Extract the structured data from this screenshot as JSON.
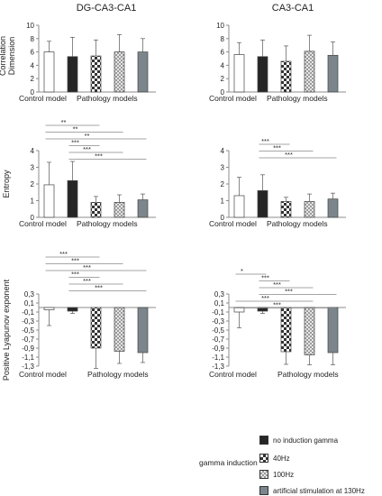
{
  "colors": {
    "control": "#ffffff",
    "no_induction": "#262626",
    "hz40": "#3a3a3a",
    "hz130": "#bdbdbd",
    "artificial": "#7b868c",
    "axis": "#8c8c8c",
    "text": "#222222"
  },
  "titles": {
    "left": "DG-CA3-CA1",
    "right": "CA3-CA1"
  },
  "legend": {
    "title": "gamma induction",
    "items": [
      {
        "label": "no induction gamma",
        "pattern": "solid-dark"
      },
      {
        "label": "40Hz",
        "pattern": "checker"
      },
      {
        "label": "100Hz",
        "pattern": "fine-checker"
      },
      {
        "label": "artificial stimulation at 130Hz",
        "pattern": "solid-gray"
      }
    ]
  },
  "chart_data": [
    {
      "type": "bar",
      "panel": "DG-CA3-CA1 correlation dimension",
      "ylabel": "Correlation Dimension",
      "ylim": [
        0,
        10
      ],
      "yticks": [
        "0",
        "2",
        "4",
        "6",
        "8",
        "10"
      ],
      "xlabels": [
        "Control model",
        "Pathology models"
      ],
      "values": [
        6.0,
        5.3,
        5.4,
        6.0,
        6.0
      ],
      "errors": [
        1.6,
        2.9,
        2.4,
        2.6,
        2.0
      ],
      "significance": []
    },
    {
      "type": "bar",
      "panel": "CA3-CA1 correlation dimension",
      "ylabel": "",
      "ylim": [
        0,
        10
      ],
      "yticks": [
        "0",
        "2",
        "4",
        "6",
        "8",
        "10"
      ],
      "xlabels": [
        "Control model",
        "Pathology models"
      ],
      "values": [
        5.6,
        5.3,
        4.6,
        6.1,
        5.5
      ],
      "errors": [
        1.8,
        2.5,
        2.3,
        2.4,
        2.0
      ],
      "significance": []
    },
    {
      "type": "bar",
      "panel": "DG-CA3-CA1 entropy",
      "ylabel": "Entropy",
      "ylim": [
        0,
        4
      ],
      "yticks": [
        "0",
        "1",
        "2",
        "3",
        "4"
      ],
      "xlabels": [
        "Control model",
        "Pathology models"
      ],
      "values": [
        1.95,
        2.2,
        0.9,
        0.9,
        1.05
      ],
      "errors": [
        1.35,
        1.15,
        0.35,
        0.45,
        0.35
      ],
      "significance": [
        {
          "from": 0,
          "to": 2,
          "label": "**"
        },
        {
          "from": 0,
          "to": 3,
          "label": "**"
        },
        {
          "from": 0,
          "to": 4,
          "label": "**"
        },
        {
          "from": 1,
          "to": 2,
          "label": "***"
        },
        {
          "from": 1,
          "to": 3,
          "label": "***"
        },
        {
          "from": 1,
          "to": 4,
          "label": "***"
        }
      ]
    },
    {
      "type": "bar",
      "panel": "CA3-CA1 entropy",
      "ylabel": "",
      "ylim": [
        0,
        4
      ],
      "yticks": [
        "0",
        "1",
        "2",
        "3",
        "4"
      ],
      "xlabels": [
        "Control model",
        "Pathology models"
      ],
      "values": [
        1.3,
        1.6,
        0.95,
        0.95,
        1.1
      ],
      "errors": [
        1.1,
        0.95,
        0.25,
        0.45,
        0.35
      ],
      "significance": [
        {
          "from": 1,
          "to": 2,
          "label": "***"
        },
        {
          "from": 1,
          "to": 3,
          "label": "***"
        },
        {
          "from": 1,
          "to": 4,
          "label": "***"
        }
      ]
    },
    {
      "type": "bar",
      "panel": "DG-CA3-CA1 positive Lyapunov exponent",
      "ylabel": "Positive Lyapunov exponent",
      "ylim": [
        -1.3,
        0.3
      ],
      "yticks": [
        "0,3",
        "0,1",
        "-0,1",
        "-0,3",
        "-0,5",
        "-0,7",
        "-0,9",
        "-1,1",
        "-1,3"
      ],
      "xlabels": [
        "Control model",
        "Pathology models"
      ],
      "values": [
        -0.05,
        -0.08,
        -0.9,
        -0.97,
        -1.0
      ],
      "errors": [
        0.35,
        0.05,
        0.45,
        0.27,
        0.22
      ],
      "significance": [
        {
          "from": 0,
          "to": 2,
          "label": "***"
        },
        {
          "from": 0,
          "to": 3,
          "label": "***"
        },
        {
          "from": 0,
          "to": 4,
          "label": "***"
        },
        {
          "from": 1,
          "to": 2,
          "label": "***"
        },
        {
          "from": 1,
          "to": 3,
          "label": "***"
        },
        {
          "from": 1,
          "to": 4,
          "label": "***"
        }
      ]
    },
    {
      "type": "bar",
      "panel": "CA3-CA1 positive Lyapunov exponent",
      "ylabel": "",
      "ylim": [
        -1.3,
        0.3
      ],
      "yticks": [
        "0,3",
        "0,1",
        "-0,1",
        "-0,3",
        "-0,5",
        "-0,7",
        "-0,9",
        "-1,1",
        "-1,3"
      ],
      "xlabels": [
        "Control model",
        "Pathology models"
      ],
      "values": [
        -0.1,
        -0.08,
        -0.98,
        -1.05,
        -1.0
      ],
      "errors": [
        0.35,
        0.05,
        0.28,
        0.22,
        0.27
      ],
      "significance": [
        {
          "from": 0,
          "to": 1,
          "label": "*"
        },
        {
          "from": 1,
          "to": 2,
          "label": "***"
        },
        {
          "from": 1,
          "to": 3,
          "label": "***"
        },
        {
          "from": 1,
          "to": 4,
          "label": "***"
        },
        {
          "from": 0,
          "to": 3,
          "label": "***"
        },
        {
          "from": 0,
          "to": 4,
          "label": "***"
        }
      ]
    }
  ]
}
